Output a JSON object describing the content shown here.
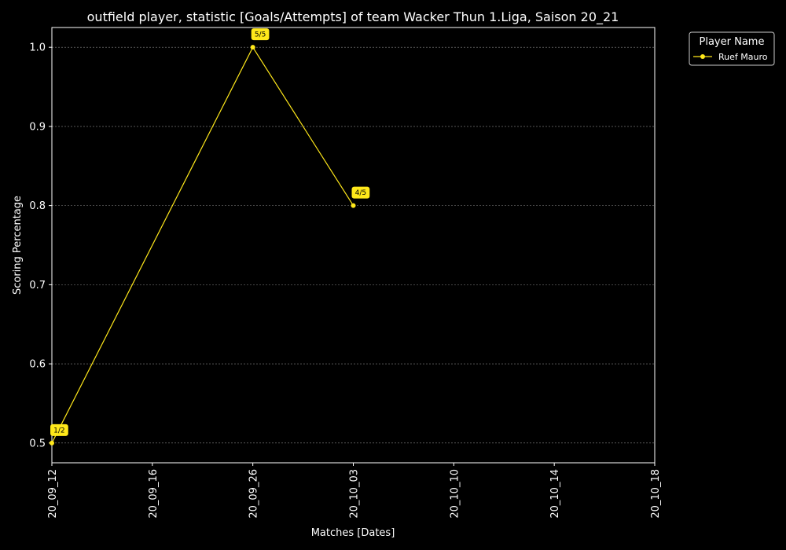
{
  "chart_data": {
    "type": "line",
    "title": "outfield player, statistic [Goals/Attempts] of team Wacker Thun 1.Liga, Saison 20_21",
    "xlabel": "Matches [Dates]",
    "ylabel": "Scoring Percentage",
    "x_ticks": [
      "20_09_12",
      "20_09_16",
      "20_09_26",
      "20_10_03",
      "20_10_10",
      "20_10_14",
      "20_10_18"
    ],
    "y_ticks": [
      "0.5",
      "0.6",
      "0.7",
      "0.8",
      "0.9",
      "1.0"
    ],
    "ylim": [
      0.475,
      1.025
    ],
    "grid": "horizontal dashed",
    "legend": {
      "title": "Player Name",
      "placement": "outside-top-right"
    },
    "series": [
      {
        "name": "Ruef Mauro",
        "color": "#ffe81a",
        "points": [
          {
            "x": "20_09_12",
            "y": 0.5,
            "label": "1/2"
          },
          {
            "x": "20_09_26",
            "y": 1.0,
            "label": "5/5"
          },
          {
            "x": "20_10_03",
            "y": 0.8,
            "label": "4/5"
          }
        ]
      }
    ]
  }
}
